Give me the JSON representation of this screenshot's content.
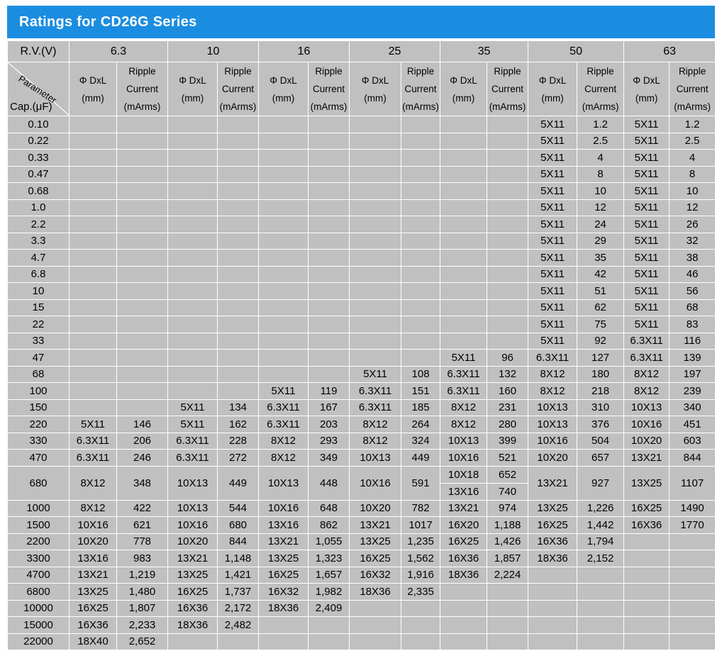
{
  "title": "Ratings for CD26G Series",
  "header": {
    "rv_label": "R.V.(V)",
    "param_label": "Parameter",
    "cap_label": "Cap.(μF)",
    "voltages": [
      "6.3",
      "10",
      "16",
      "25",
      "35",
      "50",
      "63"
    ],
    "dxl_label": [
      "Φ DxL",
      "(mm)"
    ],
    "ripple_label": [
      "Ripple",
      "Current",
      "(mArms)"
    ]
  },
  "rows": [
    {
      "cap": "0.10",
      "cells": [
        [
          "",
          ""
        ],
        [
          "",
          ""
        ],
        [
          "",
          ""
        ],
        [
          "",
          ""
        ],
        [
          "",
          ""
        ],
        [
          "5X11",
          "1.2"
        ],
        [
          "5X11",
          "1.2"
        ]
      ]
    },
    {
      "cap": "0.22",
      "cells": [
        [
          "",
          ""
        ],
        [
          "",
          ""
        ],
        [
          "",
          ""
        ],
        [
          "",
          ""
        ],
        [
          "",
          ""
        ],
        [
          "5X11",
          "2.5"
        ],
        [
          "5X11",
          "2.5"
        ]
      ]
    },
    {
      "cap": "0.33",
      "cells": [
        [
          "",
          ""
        ],
        [
          "",
          ""
        ],
        [
          "",
          ""
        ],
        [
          "",
          ""
        ],
        [
          "",
          ""
        ],
        [
          "5X11",
          "4"
        ],
        [
          "5X11",
          "4"
        ]
      ]
    },
    {
      "cap": "0.47",
      "cells": [
        [
          "",
          ""
        ],
        [
          "",
          ""
        ],
        [
          "",
          ""
        ],
        [
          "",
          ""
        ],
        [
          "",
          ""
        ],
        [
          "5X11",
          "8"
        ],
        [
          "5X11",
          "8"
        ]
      ]
    },
    {
      "cap": "0.68",
      "cells": [
        [
          "",
          ""
        ],
        [
          "",
          ""
        ],
        [
          "",
          ""
        ],
        [
          "",
          ""
        ],
        [
          "",
          ""
        ],
        [
          "5X11",
          "10"
        ],
        [
          "5X11",
          "10"
        ]
      ]
    },
    {
      "cap": "1.0",
      "cells": [
        [
          "",
          ""
        ],
        [
          "",
          ""
        ],
        [
          "",
          ""
        ],
        [
          "",
          ""
        ],
        [
          "",
          ""
        ],
        [
          "5X11",
          "12"
        ],
        [
          "5X11",
          "12"
        ]
      ]
    },
    {
      "cap": "2.2",
      "cells": [
        [
          "",
          ""
        ],
        [
          "",
          ""
        ],
        [
          "",
          ""
        ],
        [
          "",
          ""
        ],
        [
          "",
          ""
        ],
        [
          "5X11",
          "24"
        ],
        [
          "5X11",
          "26"
        ]
      ]
    },
    {
      "cap": "3.3",
      "cells": [
        [
          "",
          ""
        ],
        [
          "",
          ""
        ],
        [
          "",
          ""
        ],
        [
          "",
          ""
        ],
        [
          "",
          ""
        ],
        [
          "5X11",
          "29"
        ],
        [
          "5X11",
          "32"
        ]
      ]
    },
    {
      "cap": "4.7",
      "cells": [
        [
          "",
          ""
        ],
        [
          "",
          ""
        ],
        [
          "",
          ""
        ],
        [
          "",
          ""
        ],
        [
          "",
          ""
        ],
        [
          "5X11",
          "35"
        ],
        [
          "5X11",
          "38"
        ]
      ]
    },
    {
      "cap": "6.8",
      "cells": [
        [
          "",
          ""
        ],
        [
          "",
          ""
        ],
        [
          "",
          ""
        ],
        [
          "",
          ""
        ],
        [
          "",
          ""
        ],
        [
          "5X11",
          "42"
        ],
        [
          "5X11",
          "46"
        ]
      ]
    },
    {
      "cap": "10",
      "cells": [
        [
          "",
          ""
        ],
        [
          "",
          ""
        ],
        [
          "",
          ""
        ],
        [
          "",
          ""
        ],
        [
          "",
          ""
        ],
        [
          "5X11",
          "51"
        ],
        [
          "5X11",
          "56"
        ]
      ]
    },
    {
      "cap": "15",
      "cells": [
        [
          "",
          ""
        ],
        [
          "",
          ""
        ],
        [
          "",
          ""
        ],
        [
          "",
          ""
        ],
        [
          "",
          ""
        ],
        [
          "5X11",
          "62"
        ],
        [
          "5X11",
          "68"
        ]
      ]
    },
    {
      "cap": "22",
      "cells": [
        [
          "",
          ""
        ],
        [
          "",
          ""
        ],
        [
          "",
          ""
        ],
        [
          "",
          ""
        ],
        [
          "",
          ""
        ],
        [
          "5X11",
          "75"
        ],
        [
          "5X11",
          "83"
        ]
      ]
    },
    {
      "cap": "33",
      "cells": [
        [
          "",
          ""
        ],
        [
          "",
          ""
        ],
        [
          "",
          ""
        ],
        [
          "",
          ""
        ],
        [
          "",
          ""
        ],
        [
          "5X11",
          "92"
        ],
        [
          "6.3X11",
          "116"
        ]
      ]
    },
    {
      "cap": "47",
      "cells": [
        [
          "",
          ""
        ],
        [
          "",
          ""
        ],
        [
          "",
          ""
        ],
        [
          "",
          ""
        ],
        [
          "5X11",
          "96"
        ],
        [
          "6.3X11",
          "127"
        ],
        [
          "6.3X11",
          "139"
        ]
      ]
    },
    {
      "cap": "68",
      "cells": [
        [
          "",
          ""
        ],
        [
          "",
          ""
        ],
        [
          "",
          ""
        ],
        [
          "5X11",
          "108"
        ],
        [
          "6.3X11",
          "132"
        ],
        [
          "8X12",
          "180"
        ],
        [
          "8X12",
          "197"
        ]
      ]
    },
    {
      "cap": "100",
      "cells": [
        [
          "",
          ""
        ],
        [
          "",
          ""
        ],
        [
          "5X11",
          "119"
        ],
        [
          "6.3X11",
          "151"
        ],
        [
          "6.3X11",
          "160"
        ],
        [
          "8X12",
          "218"
        ],
        [
          "8X12",
          "239"
        ]
      ]
    },
    {
      "cap": "150",
      "cells": [
        [
          "",
          ""
        ],
        [
          "5X11",
          "134"
        ],
        [
          "6.3X11",
          "167"
        ],
        [
          "6.3X11",
          "185"
        ],
        [
          "8X12",
          "231"
        ],
        [
          "10X13",
          "310"
        ],
        [
          "10X13",
          "340"
        ]
      ]
    },
    {
      "cap": "220",
      "cells": [
        [
          "5X11",
          "146"
        ],
        [
          "5X11",
          "162"
        ],
        [
          "6.3X11",
          "203"
        ],
        [
          "8X12",
          "264"
        ],
        [
          "8X12",
          "280"
        ],
        [
          "10X13",
          "376"
        ],
        [
          "10X16",
          "451"
        ]
      ]
    },
    {
      "cap": "330",
      "cells": [
        [
          "6.3X11",
          "206"
        ],
        [
          "6.3X11",
          "228"
        ],
        [
          "8X12",
          "293"
        ],
        [
          "8X12",
          "324"
        ],
        [
          "10X13",
          "399"
        ],
        [
          "10X16",
          "504"
        ],
        [
          "10X20",
          "603"
        ]
      ]
    },
    {
      "cap": "470",
      "cells": [
        [
          "6.3X11",
          "246"
        ],
        [
          "6.3X11",
          "272"
        ],
        [
          "8X12",
          "349"
        ],
        [
          "10X13",
          "449"
        ],
        [
          "10X16",
          "521"
        ],
        [
          "10X20",
          "657"
        ],
        [
          "13X21",
          "844"
        ]
      ]
    },
    {
      "cap": "680",
      "cells": [
        [
          "8X12",
          "348"
        ],
        [
          "10X13",
          "449"
        ],
        [
          "10X13",
          "448"
        ],
        [
          "10X16",
          "591"
        ],
        [
          "10X18|13X16",
          "652|740"
        ],
        [
          "13X21",
          "927"
        ],
        [
          "13X25",
          "1107"
        ]
      ]
    },
    {
      "cap": "1000",
      "cells": [
        [
          "8X12",
          "422"
        ],
        [
          "10X13",
          "544"
        ],
        [
          "10X16",
          "648"
        ],
        [
          "10X20",
          "782"
        ],
        [
          "13X21",
          "974"
        ],
        [
          "13X25",
          "1,226"
        ],
        [
          "16X25",
          "1490"
        ]
      ]
    },
    {
      "cap": "1500",
      "cells": [
        [
          "10X16",
          "621"
        ],
        [
          "10X16",
          "680"
        ],
        [
          "13X16",
          "862"
        ],
        [
          "13X21",
          "1017"
        ],
        [
          "16X20",
          "1,188"
        ],
        [
          "16X25",
          "1,442"
        ],
        [
          "16X36",
          "1770"
        ]
      ]
    },
    {
      "cap": "2200",
      "cells": [
        [
          "10X20",
          "778"
        ],
        [
          "10X20",
          "844"
        ],
        [
          "13X21",
          "1,055"
        ],
        [
          "13X25",
          "1,235"
        ],
        [
          "16X25",
          "1,426"
        ],
        [
          "16X36",
          "1,794"
        ],
        [
          "",
          ""
        ]
      ]
    },
    {
      "cap": "3300",
      "cells": [
        [
          "13X16",
          "983"
        ],
        [
          "13X21",
          "1,148"
        ],
        [
          "13X25",
          "1,323"
        ],
        [
          "16X25",
          "1,562"
        ],
        [
          "16X36",
          "1,857"
        ],
        [
          "18X36",
          "2,152"
        ],
        [
          "",
          ""
        ]
      ]
    },
    {
      "cap": "4700",
      "cells": [
        [
          "13X21",
          "1,219"
        ],
        [
          "13X25",
          "1,421"
        ],
        [
          "16X25",
          "1,657"
        ],
        [
          "16X32",
          "1,916"
        ],
        [
          "18X36",
          "2,224"
        ],
        [
          "",
          ""
        ],
        [
          "",
          ""
        ]
      ]
    },
    {
      "cap": "6800",
      "cells": [
        [
          "13X25",
          "1,480"
        ],
        [
          "16X25",
          "1,737"
        ],
        [
          "16X32",
          "1,982"
        ],
        [
          "18X36",
          "2,335"
        ],
        [
          "",
          ""
        ],
        [
          "",
          ""
        ],
        [
          "",
          ""
        ]
      ]
    },
    {
      "cap": "10000",
      "cells": [
        [
          "16X25",
          "1,807"
        ],
        [
          "16X36",
          "2,172"
        ],
        [
          "18X36",
          "2,409"
        ],
        [
          "",
          ""
        ],
        [
          "",
          ""
        ],
        [
          "",
          ""
        ],
        [
          "",
          ""
        ]
      ]
    },
    {
      "cap": "15000",
      "cells": [
        [
          "16X36",
          "2,233"
        ],
        [
          "18X36",
          "2,482"
        ],
        [
          "",
          ""
        ],
        [
          "",
          ""
        ],
        [
          "",
          ""
        ],
        [
          "",
          ""
        ],
        [
          "",
          ""
        ]
      ]
    },
    {
      "cap": "22000",
      "cells": [
        [
          "18X40",
          "2,652"
        ],
        [
          "",
          ""
        ],
        [
          "",
          ""
        ],
        [
          "",
          ""
        ],
        [
          "",
          ""
        ],
        [
          "",
          ""
        ],
        [
          "",
          ""
        ]
      ]
    }
  ]
}
